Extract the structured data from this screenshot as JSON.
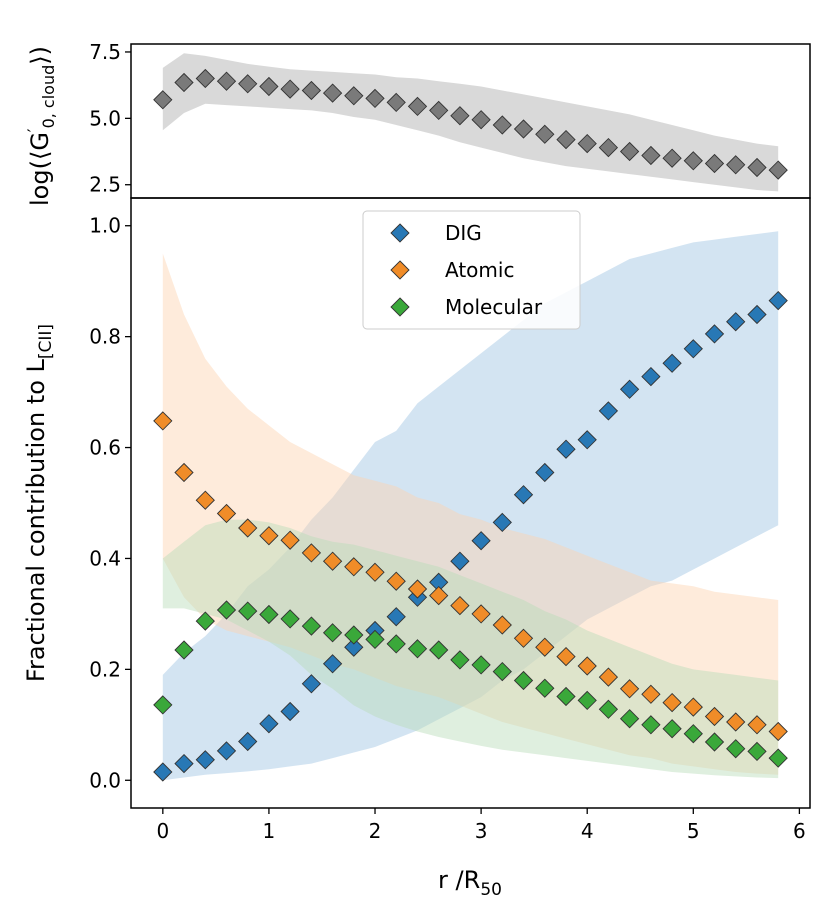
{
  "chart_data": [
    {
      "type": "scatter",
      "panel": "top",
      "ylabel_main": "log(⟨G",
      "ylabel_sup": "′",
      "ylabel_sub": "0, cloud",
      "ylabel_end": "⟩)",
      "xlim": [
        -0.3,
        6.1
      ],
      "ylim": [
        2.0,
        7.8
      ],
      "yticks": [
        "2.5",
        "5.0",
        "7.5"
      ],
      "ytick_values": [
        2.5,
        5.0,
        7.5
      ],
      "series": [
        {
          "name": "G0 cloud",
          "color": "#7a7a7a",
          "band_color": "#d9d9d9",
          "x": [
            0,
            0.2,
            0.4,
            0.6,
            0.8,
            1.0,
            1.2,
            1.4,
            1.6,
            1.8,
            2.0,
            2.2,
            2.4,
            2.6,
            2.8,
            3.0,
            3.2,
            3.4,
            3.6,
            3.8,
            4.0,
            4.2,
            4.4,
            4.6,
            4.8,
            5.0,
            5.2,
            5.4,
            5.6,
            5.8
          ],
          "values": [
            5.7,
            6.35,
            6.5,
            6.4,
            6.3,
            6.2,
            6.1,
            6.05,
            5.95,
            5.85,
            5.75,
            5.6,
            5.45,
            5.3,
            5.1,
            4.95,
            4.75,
            4.6,
            4.4,
            4.2,
            4.05,
            3.9,
            3.75,
            3.6,
            3.5,
            3.4,
            3.3,
            3.25,
            3.15,
            3.05
          ],
          "upper": [
            6.9,
            7.45,
            7.35,
            7.2,
            7.05,
            6.95,
            6.85,
            6.8,
            6.75,
            6.7,
            6.65,
            6.55,
            6.5,
            6.4,
            6.3,
            6.2,
            6.05,
            5.9,
            5.75,
            5.6,
            5.45,
            5.3,
            5.15,
            4.95,
            4.75,
            4.55,
            4.35,
            4.2,
            4.05,
            3.95
          ],
          "lower": [
            4.55,
            5.2,
            5.55,
            5.5,
            5.45,
            5.4,
            5.35,
            5.3,
            5.2,
            5.05,
            4.95,
            4.75,
            4.55,
            4.35,
            4.1,
            3.9,
            3.7,
            3.5,
            3.35,
            3.2,
            3.1,
            3.0,
            2.9,
            2.8,
            2.7,
            2.6,
            2.5,
            2.4,
            2.3,
            2.25
          ]
        }
      ]
    },
    {
      "type": "scatter",
      "panel": "bottom",
      "ylabel_main": "Fractional contribution to L",
      "ylabel_sub": "[CII]",
      "xlabel_main": "r /R",
      "xlabel_sub": "50",
      "xlim": [
        -0.3,
        6.1
      ],
      "ylim": [
        -0.05,
        1.05
      ],
      "xticks": [
        "0",
        "1",
        "2",
        "3",
        "4",
        "5",
        "6"
      ],
      "xtick_values": [
        0,
        1,
        2,
        3,
        4,
        5,
        6
      ],
      "yticks": [
        "0.0",
        "0.2",
        "0.4",
        "0.6",
        "0.8",
        "1.0"
      ],
      "ytick_values": [
        0.0,
        0.2,
        0.4,
        0.6,
        0.8,
        1.0
      ],
      "legend": "upper-center",
      "series": [
        {
          "name": "DIG",
          "color": "#2878b5",
          "band_color": "#9dc3e3",
          "x": [
            0,
            0.2,
            0.4,
            0.6,
            0.8,
            1.0,
            1.2,
            1.4,
            1.6,
            1.8,
            2.0,
            2.2,
            2.4,
            2.6,
            2.8,
            3.0,
            3.2,
            3.4,
            3.6,
            3.8,
            4.0,
            4.2,
            4.4,
            4.6,
            4.8,
            5.0,
            5.2,
            5.4,
            5.6,
            5.8
          ],
          "values": [
            0.015,
            0.03,
            0.037,
            0.053,
            0.07,
            0.102,
            0.124,
            0.174,
            0.21,
            0.24,
            0.27,
            0.295,
            0.33,
            0.357,
            0.395,
            0.432,
            0.465,
            0.515,
            0.555,
            0.597,
            0.614,
            0.666,
            0.705,
            0.728,
            0.752,
            0.778,
            0.805,
            0.827,
            0.84,
            0.865
          ],
          "upper": [
            0.19,
            0.23,
            0.26,
            0.3,
            0.35,
            0.38,
            0.42,
            0.47,
            0.51,
            0.56,
            0.61,
            0.63,
            0.68,
            0.71,
            0.74,
            0.77,
            0.8,
            0.83,
            0.86,
            0.88,
            0.9,
            0.92,
            0.94,
            0.95,
            0.96,
            0.97,
            0.975,
            0.98,
            0.985,
            0.99
          ],
          "lower": [
            0.0,
            0.005,
            0.01,
            0.013,
            0.016,
            0.02,
            0.025,
            0.03,
            0.04,
            0.05,
            0.06,
            0.075,
            0.09,
            0.11,
            0.13,
            0.15,
            0.18,
            0.2,
            0.23,
            0.26,
            0.29,
            0.31,
            0.33,
            0.35,
            0.36,
            0.38,
            0.4,
            0.42,
            0.44,
            0.46
          ]
        },
        {
          "name": "Atomic",
          "color": "#f08c28",
          "band_color": "#fdd2b0",
          "x": [
            0,
            0.2,
            0.4,
            0.6,
            0.8,
            1.0,
            1.2,
            1.4,
            1.6,
            1.8,
            2.0,
            2.2,
            2.4,
            2.6,
            2.8,
            3.0,
            3.2,
            3.4,
            3.6,
            3.8,
            4.0,
            4.2,
            4.4,
            4.6,
            4.8,
            5.0,
            5.2,
            5.4,
            5.6,
            5.8
          ],
          "values": [
            0.648,
            0.555,
            0.505,
            0.481,
            0.455,
            0.441,
            0.433,
            0.41,
            0.395,
            0.385,
            0.375,
            0.359,
            0.345,
            0.333,
            0.315,
            0.3,
            0.28,
            0.256,
            0.24,
            0.223,
            0.206,
            0.186,
            0.165,
            0.155,
            0.14,
            0.132,
            0.115,
            0.105,
            0.1,
            0.088
          ],
          "upper": [
            0.95,
            0.84,
            0.76,
            0.71,
            0.67,
            0.64,
            0.61,
            0.59,
            0.57,
            0.55,
            0.54,
            0.53,
            0.51,
            0.5,
            0.48,
            0.47,
            0.455,
            0.445,
            0.435,
            0.42,
            0.405,
            0.39,
            0.375,
            0.36,
            0.355,
            0.35,
            0.34,
            0.335,
            0.33,
            0.325
          ],
          "lower": [
            0.4,
            0.33,
            0.29,
            0.27,
            0.26,
            0.25,
            0.24,
            0.225,
            0.21,
            0.2,
            0.185,
            0.17,
            0.16,
            0.15,
            0.135,
            0.12,
            0.105,
            0.095,
            0.085,
            0.075,
            0.065,
            0.055,
            0.045,
            0.04,
            0.03,
            0.025,
            0.02,
            0.015,
            0.012,
            0.01
          ]
        },
        {
          "name": "Molecular",
          "color": "#3aa83a",
          "band_color": "#b7dcb7",
          "x": [
            0,
            0.2,
            0.4,
            0.6,
            0.8,
            1.0,
            1.2,
            1.4,
            1.6,
            1.8,
            2.0,
            2.2,
            2.4,
            2.6,
            2.8,
            3.0,
            3.2,
            3.4,
            3.6,
            3.8,
            4.0,
            4.2,
            4.4,
            4.6,
            4.8,
            5.0,
            5.2,
            5.4,
            5.6,
            5.8
          ],
          "values": [
            0.136,
            0.235,
            0.287,
            0.307,
            0.305,
            0.299,
            0.291,
            0.278,
            0.266,
            0.262,
            0.254,
            0.246,
            0.237,
            0.235,
            0.217,
            0.208,
            0.196,
            0.18,
            0.166,
            0.151,
            0.144,
            0.128,
            0.111,
            0.1,
            0.093,
            0.084,
            0.069,
            0.057,
            0.052,
            0.04
          ],
          "upper": [
            0.4,
            0.43,
            0.46,
            0.47,
            0.47,
            0.465,
            0.455,
            0.44,
            0.43,
            0.425,
            0.415,
            0.405,
            0.395,
            0.385,
            0.37,
            0.355,
            0.34,
            0.325,
            0.305,
            0.29,
            0.27,
            0.255,
            0.24,
            0.225,
            0.21,
            0.2,
            0.195,
            0.19,
            0.185,
            0.18
          ],
          "lower": [
            0.31,
            0.31,
            0.3,
            0.29,
            0.27,
            0.25,
            0.225,
            0.19,
            0.165,
            0.135,
            0.115,
            0.1,
            0.088,
            0.078,
            0.07,
            0.062,
            0.055,
            0.05,
            0.045,
            0.04,
            0.035,
            0.03,
            0.025,
            0.02,
            0.015,
            0.012,
            0.009,
            0.007,
            0.005,
            0.004
          ]
        }
      ]
    }
  ]
}
